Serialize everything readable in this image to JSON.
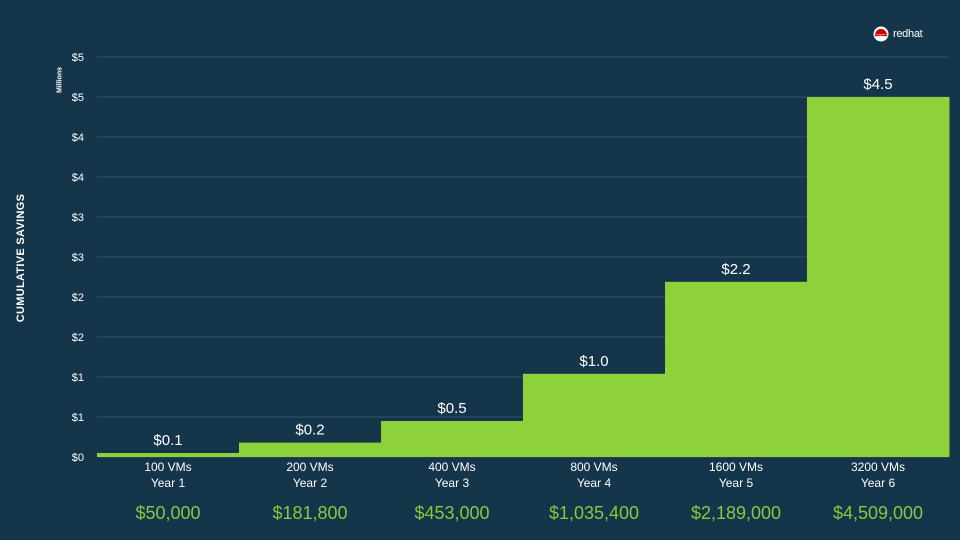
{
  "logo": {
    "text": "redhat",
    "icon": "redhat-shadowman-icon"
  },
  "colors": {
    "background": "#14354a",
    "bar": "#8dd13b",
    "grid": "#2e5266",
    "text": "#ffffff",
    "totals": "#8cc63f"
  },
  "chart_data": {
    "type": "bar",
    "style": "step",
    "ylabel": "CUMULATIVE SAVINGS",
    "yunit": "Millions",
    "ylim": [
      0,
      5
    ],
    "y_ticks": [
      "$0",
      "$1",
      "$1",
      "$2",
      "$2",
      "$3",
      "$3",
      "$4",
      "$4",
      "$5",
      "$5"
    ],
    "grid": true,
    "categories": [
      {
        "vms": "100 VMs",
        "year": "Year 1"
      },
      {
        "vms": "200 VMs",
        "year": "Year 2"
      },
      {
        "vms": "400 VMs",
        "year": "Year 3"
      },
      {
        "vms": "800 VMs",
        "year": "Year 4"
      },
      {
        "vms": "1600 VMs",
        "year": "Year 5"
      },
      {
        "vms": "3200 VMs",
        "year": "Year 6"
      }
    ],
    "values": [
      0.05,
      0.18,
      0.45,
      1.04,
      2.19,
      4.5
    ],
    "data_labels": [
      "$0.1",
      "$0.2",
      "$0.5",
      "$1.0",
      "$2.2",
      "$4.5"
    ],
    "totals": [
      "$50,000",
      "$181,800",
      "$453,000",
      "$1,035,400",
      "$2,189,000",
      "$4,509,000"
    ]
  }
}
